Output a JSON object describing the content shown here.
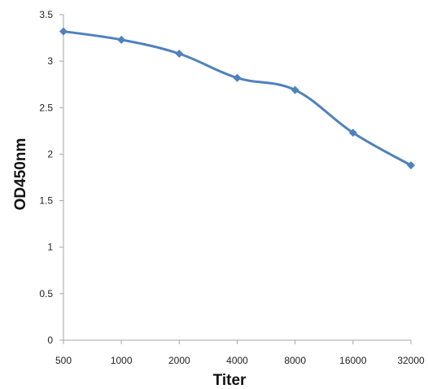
{
  "chart_data": {
    "type": "line",
    "title": "",
    "xlabel": "Titer",
    "ylabel": "OD450nm",
    "categories": [
      "500",
      "1000",
      "2000",
      "4000",
      "8000",
      "16000",
      "32000"
    ],
    "series": [
      {
        "values": [
          3.32,
          3.23,
          3.08,
          2.82,
          2.69,
          2.23,
          1.88
        ]
      }
    ],
    "ylim": [
      0,
      3.5
    ],
    "yticks": [
      "0",
      "0.5",
      "1",
      "1.5",
      "2",
      "2.5",
      "3",
      "3.5"
    ],
    "grid": false,
    "legend": "none",
    "line_color": "#4F81BD",
    "axis_color": "#A6A6A6"
  }
}
